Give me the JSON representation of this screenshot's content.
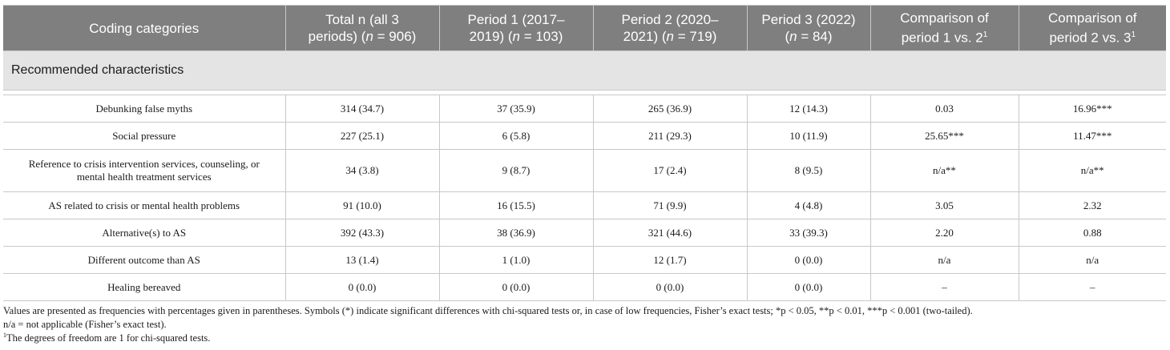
{
  "header": {
    "col0": "Coding categories",
    "col1a": "Total n (all 3",
    "col1b": "periods) (",
    "col1n": "n",
    "col1c": " = 906)",
    "col2a": "Period 1 (2017–",
    "col2b": "2019) (",
    "col2n": "n",
    "col2c": " = 103)",
    "col3a": "Period 2 (2020–",
    "col3b": "2021) (",
    "col3n": "n",
    "col3c": " = 719)",
    "col4a": "Period 3 (2022)",
    "col4b": "(",
    "col4n": "n",
    "col4c": " = 84)",
    "col5a": "Comparison of",
    "col5b": "period 1 vs. 2",
    "col5sup": "1",
    "col6a": "Comparison of",
    "col6b": "period 2 vs. 3",
    "col6sup": "1"
  },
  "section": "Recommended characteristics",
  "rows": [
    {
      "cat": "Debunking false myths",
      "total": "314 (34.7)",
      "p1": "37 (35.9)",
      "p2": "265 (36.9)",
      "p3": "12 (14.3)",
      "c12": "0.03",
      "c23": "16.96***"
    },
    {
      "cat": "Social pressure",
      "total": "227 (25.1)",
      "p1": "6 (5.8)",
      "p2": "211 (29.3)",
      "p3": "10 (11.9)",
      "c12": "25.65***",
      "c23": "11.47***"
    },
    {
      "cat": "Reference to crisis intervention services, counseling, or",
      "cat2": "mental health treatment services",
      "total": "34 (3.8)",
      "p1": "9 (8.7)",
      "p2": "17 (2.4)",
      "p3": "8 (9.5)",
      "c12": "n/a**",
      "c23": "n/a**"
    },
    {
      "cat": "AS related to crisis or mental health problems",
      "total": "91 (10.0)",
      "p1": "16 (15.5)",
      "p2": "71 (9.9)",
      "p3": "4 (4.8)",
      "c12": "3.05",
      "c23": "2.32"
    },
    {
      "cat": "Alternative(s) to AS",
      "total": "392 (43.3)",
      "p1": "38 (36.9)",
      "p2": "321 (44.6)",
      "p3": "33 (39.3)",
      "c12": "2.20",
      "c23": "0.88"
    },
    {
      "cat": "Different outcome than AS",
      "total": "13 (1.4)",
      "p1": "1 (1.0)",
      "p2": "12 (1.7)",
      "p3": "0 (0.0)",
      "c12": "n/a",
      "c23": "n/a"
    },
    {
      "cat": "Healing bereaved",
      "total": "0 (0.0)",
      "p1": "0 (0.0)",
      "p2": "0 (0.0)",
      "p3": "0 (0.0)",
      "c12": "–",
      "c23": "–"
    }
  ],
  "footnotes": {
    "line1": "Values are presented as frequencies with percentages given in parentheses. Symbols (*) indicate significant differences with chi-squared tests or, in case of low frequencies, Fisher’s exact tests; *p < 0.05, **p < 0.01, ***p < 0.001 (two-tailed).",
    "line2": "n/a = not applicable (Fisher’s exact test).",
    "line3sup": "1",
    "line3": "The degrees of freedom are 1 for chi-squared tests."
  }
}
